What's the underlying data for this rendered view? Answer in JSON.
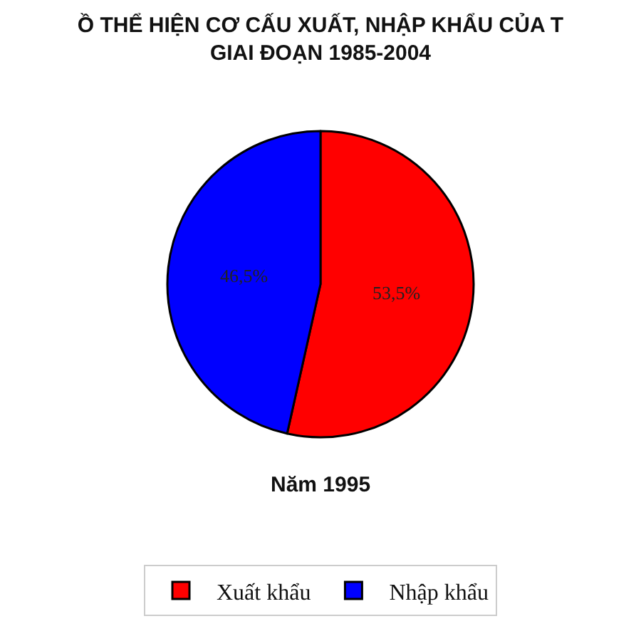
{
  "chart_data": {
    "type": "pie",
    "title": "Ồ THỂ HIỆN CƠ CẤU XUẤT, NHẬP KHẨU CỦA T\nGIAI ĐOẠN 1985-2004",
    "categories": [
      "Xuất khẩu",
      "Nhập khẩu"
    ],
    "values": [
      53.5,
      46.5
    ],
    "colors": [
      "#ff0000",
      "#0000ff"
    ],
    "value_labels": [
      "53,5%",
      "46,5%"
    ],
    "annotations": [
      "Năm 1995"
    ],
    "legend": "bottom"
  }
}
